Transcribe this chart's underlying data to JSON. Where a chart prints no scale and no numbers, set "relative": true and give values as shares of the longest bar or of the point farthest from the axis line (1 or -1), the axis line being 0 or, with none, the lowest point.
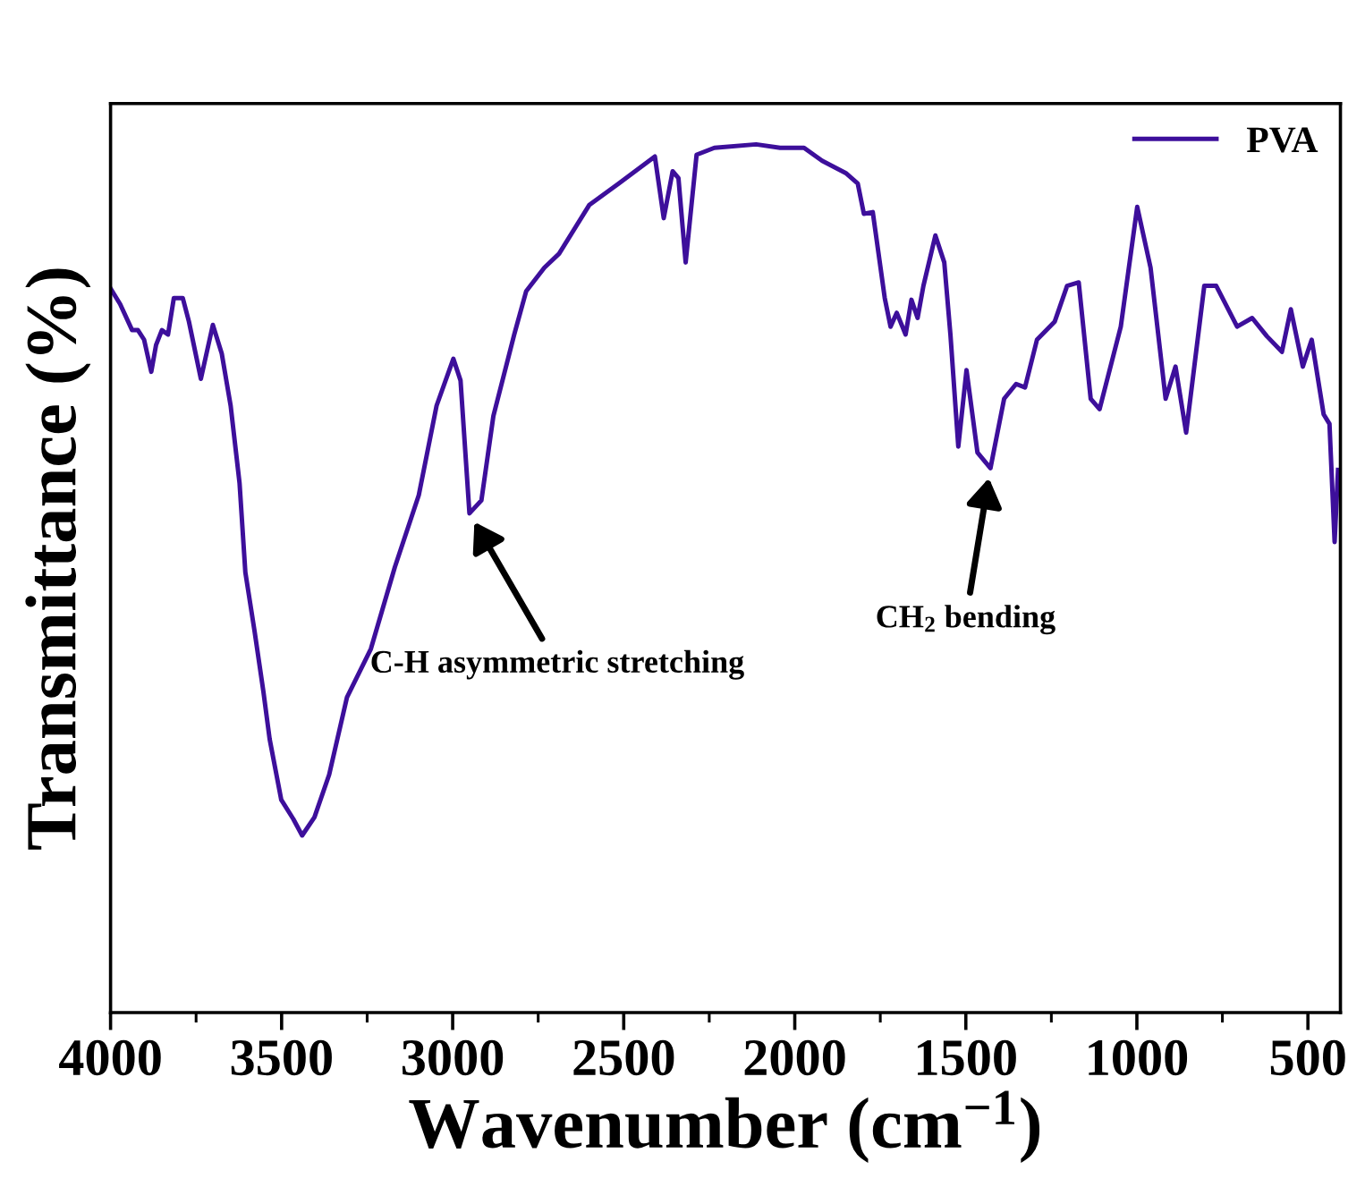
{
  "chart_data": {
    "type": "line",
    "relative": true,
    "xlabel": "Wavenumber (cm$^{−1}$)",
    "ylabel": "Transmittance (%)",
    "xlim": [
      4000,
      405
    ],
    "xticks": [
      4000,
      3500,
      3000,
      2500,
      2000,
      1500,
      1000,
      500
    ],
    "legend": "top right",
    "grid": false,
    "marker": "none",
    "line_style": "solid",
    "annotations": [
      {
        "text": "C-H asymmetric stretching",
        "x": 2951,
        "y": 0.575
      },
      {
        "text": "CH$_{2}$ bending",
        "x": 1428,
        "y": 0.627
      }
    ],
    "series": [
      {
        "name": "PVA",
        "color": "#3d0f9b",
        "x": [
          4000,
          3972,
          3937,
          3920,
          3902,
          3881,
          3867,
          3850,
          3832,
          3815,
          3789,
          3771,
          3736,
          3701,
          3675,
          3649,
          3623,
          3606,
          3579,
          3553,
          3535,
          3501,
          3466,
          3440,
          3404,
          3361,
          3309,
          3239,
          3169,
          3099,
          3047,
          2998,
          2977,
          2951,
          2916,
          2881,
          2820,
          2785,
          2732,
          2689,
          2601,
          2514,
          2409,
          2383,
          2357,
          2340,
          2319,
          2287,
          2235,
          2113,
          2043,
          1973,
          1920,
          1851,
          1816,
          1798,
          1772,
          1737,
          1720,
          1702,
          1676,
          1659,
          1641,
          1624,
          1589,
          1563,
          1545,
          1522,
          1498,
          1466,
          1428,
          1388,
          1353,
          1327,
          1292,
          1240,
          1204,
          1170,
          1135,
          1109,
          1047,
          999,
          960,
          916,
          887,
          856,
          803,
          768,
          707,
          663,
          620,
          576,
          550,
          515,
          489,
          454,
          437,
          422,
          412
        ],
        "values": [
          0.834,
          0.816,
          0.786,
          0.786,
          0.775,
          0.738,
          0.769,
          0.786,
          0.781,
          0.823,
          0.823,
          0.796,
          0.73,
          0.792,
          0.759,
          0.699,
          0.61,
          0.507,
          0.439,
          0.369,
          0.315,
          0.245,
          0.223,
          0.204,
          0.225,
          0.274,
          0.363,
          0.419,
          0.513,
          0.596,
          0.699,
          0.753,
          0.728,
          0.575,
          0.59,
          0.687,
          0.781,
          0.831,
          0.858,
          0.874,
          0.93,
          0.955,
          0.986,
          0.915,
          0.969,
          0.961,
          0.864,
          0.988,
          0.996,
          1,
          0.996,
          0.996,
          0.981,
          0.967,
          0.955,
          0.92,
          0.922,
          0.823,
          0.79,
          0.806,
          0.781,
          0.821,
          0.8,
          0.837,
          0.895,
          0.864,
          0.781,
          0.652,
          0.74,
          0.645,
          0.627,
          0.707,
          0.724,
          0.72,
          0.775,
          0.796,
          0.837,
          0.841,
          0.707,
          0.695,
          0.79,
          0.928,
          0.858,
          0.707,
          0.744,
          0.668,
          0.837,
          0.837,
          0.79,
          0.8,
          0.779,
          0.761,
          0.81,
          0.744,
          0.775,
          0.689,
          0.678,
          0.542,
          0.625
        ]
      }
    ]
  }
}
